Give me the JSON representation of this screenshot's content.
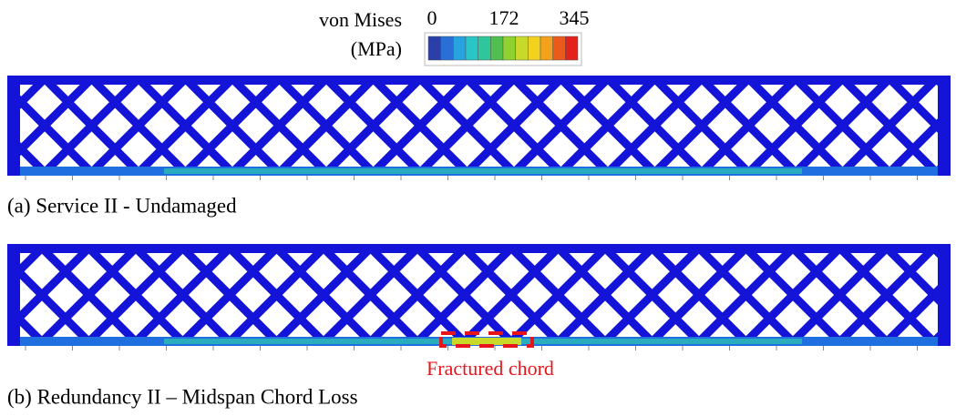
{
  "legend": {
    "title": "von Mises",
    "unit": "(MPa)",
    "ticks": [
      "0",
      "172",
      "345"
    ],
    "colors": [
      "#2a3fa8",
      "#2a6fd6",
      "#27a3e0",
      "#28c6c6",
      "#2fc69a",
      "#4fbf4f",
      "#8fd12f",
      "#c8d92a",
      "#f2d21e",
      "#f3a11d",
      "#ec5a1b",
      "#e3221c"
    ]
  },
  "panels": [
    {
      "caption": "(a) Service II - Undamaged"
    },
    {
      "caption": "(b) Redundancy II – Midspan Chord Loss",
      "annotation": "Fractured chord"
    }
  ]
}
